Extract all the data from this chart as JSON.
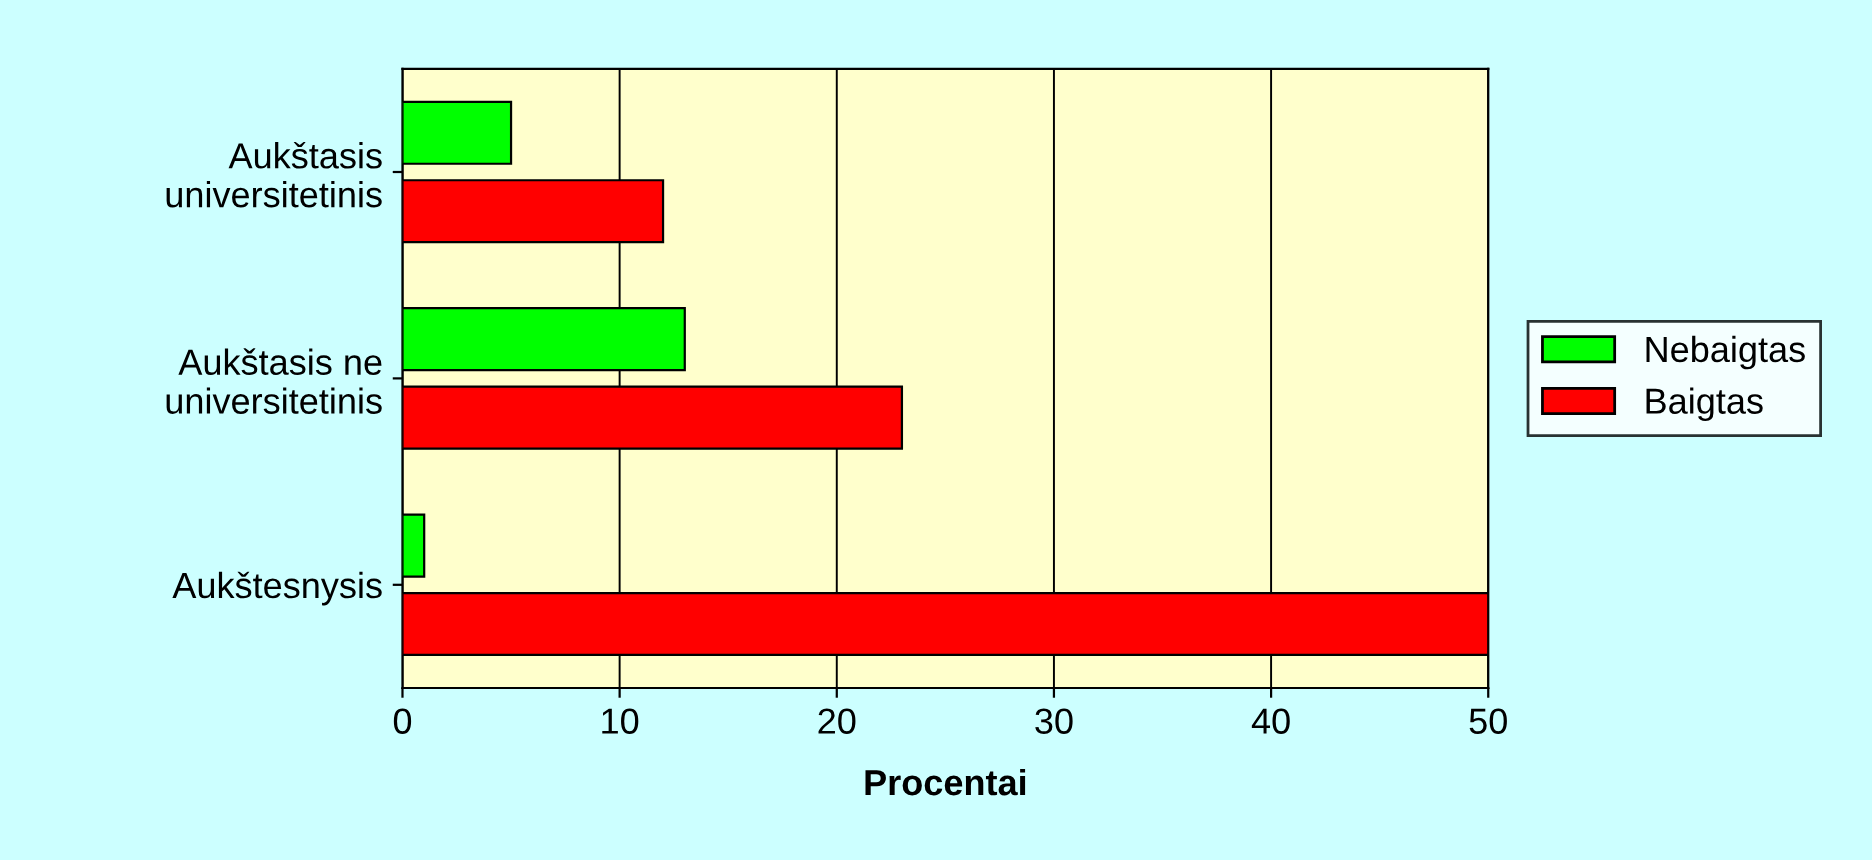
{
  "chart_data": {
    "type": "bar",
    "orientation": "horizontal",
    "categories": [
      "Aukštasis\nuniversitetinis",
      "Aukštasis ne\nuniversitetinis",
      "Aukštesnysis"
    ],
    "series": [
      {
        "name": "Nebaigtas",
        "color": "#00ff00",
        "values": [
          5,
          13,
          1
        ]
      },
      {
        "name": "Baigtas",
        "color": "#ff0000",
        "values": [
          12,
          23,
          50
        ]
      }
    ],
    "xlabel": "Procentai",
    "xlim": [
      0,
      50
    ],
    "xticks": [
      0,
      10,
      20,
      30,
      40,
      50
    ],
    "grid": "x",
    "legend": "right"
  }
}
